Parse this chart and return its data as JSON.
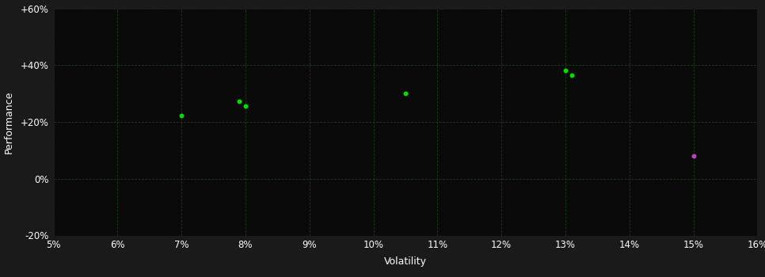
{
  "background_color": "#1a1a1a",
  "plot_bg_color": "#0a0a0a",
  "grid_color": "#1e3a1e",
  "text_color": "#ffffff",
  "xlabel": "Volatility",
  "ylabel": "Performance",
  "xlim": [
    0.05,
    0.16
  ],
  "ylim": [
    -0.2,
    0.6
  ],
  "xticks": [
    0.05,
    0.06,
    0.07,
    0.08,
    0.09,
    0.1,
    0.11,
    0.12,
    0.13,
    0.14,
    0.15,
    0.16
  ],
  "yticks": [
    -0.2,
    0.0,
    0.2,
    0.4,
    0.6
  ],
  "ytick_labels": [
    "-20%",
    "0%",
    "+20%",
    "+40%",
    "+60%"
  ],
  "xtick_labels": [
    "5%",
    "6%",
    "7%",
    "8%",
    "9%",
    "10%",
    "11%",
    "12%",
    "13%",
    "14%",
    "15%",
    "16%"
  ],
  "green_points": [
    [
      0.07,
      0.222
    ],
    [
      0.079,
      0.272
    ],
    [
      0.08,
      0.255
    ],
    [
      0.105,
      0.3
    ],
    [
      0.13,
      0.38
    ],
    [
      0.131,
      0.365
    ]
  ],
  "magenta_points": [
    [
      0.15,
      0.08
    ]
  ],
  "green_color": "#00dd00",
  "magenta_color": "#bb44bb",
  "marker_size": 18,
  "marker": "o"
}
